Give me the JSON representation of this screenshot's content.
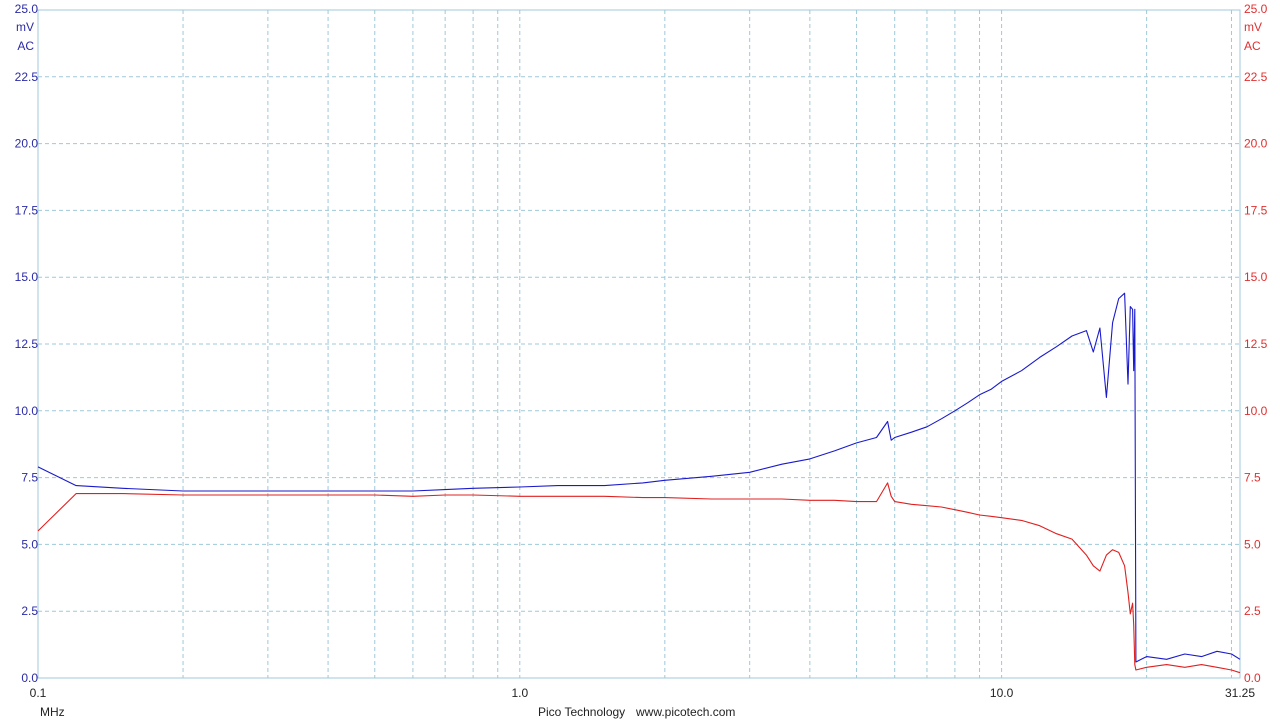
{
  "footer": {
    "brand": "Pico Technology",
    "website": "www.picotech.com"
  },
  "chart_data": {
    "type": "line",
    "x_scale": "log",
    "x_unit_label": "MHz",
    "x_ticks": [
      {
        "value": 0.1,
        "label": "0.1"
      },
      {
        "value": 1.0,
        "label": "1.0"
      },
      {
        "value": 10.0,
        "label": "10.0"
      },
      {
        "value": 31.25,
        "label": "31.25"
      }
    ],
    "xlim": [
      0.1,
      31.25
    ],
    "y_left": {
      "unit": "mV",
      "coupling": "AC",
      "color": "#1a1acc",
      "ylim": [
        0,
        25
      ],
      "ticks": [
        "0.0",
        "2.5",
        "5.0",
        "7.5",
        "10.0",
        "12.5",
        "15.0",
        "17.5",
        "20.0",
        "22.5",
        "25.0"
      ]
    },
    "y_right": {
      "unit": "mV",
      "coupling": "AC",
      "color": "#e02020",
      "ylim": [
        0,
        25
      ],
      "ticks": [
        "0.0",
        "2.5",
        "5.0",
        "7.5",
        "10.0",
        "12.5",
        "15.0",
        "17.5",
        "20.0",
        "22.5",
        "25.0"
      ]
    },
    "grid": true,
    "series": [
      {
        "color": "#1a1acc",
        "axis": "left",
        "x": [
          0.1,
          0.12,
          0.15,
          0.2,
          0.3,
          0.4,
          0.5,
          0.6,
          0.7,
          0.8,
          1.0,
          1.2,
          1.5,
          1.8,
          2.0,
          2.5,
          3.0,
          3.5,
          4.0,
          4.5,
          5.0,
          5.5,
          5.8,
          5.9,
          6.0,
          6.5,
          7.0,
          7.5,
          8.0,
          8.5,
          9.0,
          9.5,
          10.0,
          11.0,
          12.0,
          13.0,
          14.0,
          15.0,
          15.5,
          16.0,
          16.5,
          17.0,
          17.5,
          18.0,
          18.3,
          18.5,
          18.7,
          18.8,
          18.9,
          19.0,
          20.0,
          22.0,
          24.0,
          26.0,
          28.0,
          30.0,
          31.25
        ],
        "y": [
          7.9,
          7.2,
          7.1,
          7.0,
          7.0,
          7.0,
          7.0,
          7.0,
          7.05,
          7.1,
          7.15,
          7.2,
          7.2,
          7.3,
          7.4,
          7.55,
          7.7,
          8.0,
          8.2,
          8.5,
          8.8,
          9.0,
          9.6,
          8.9,
          9.0,
          9.2,
          9.4,
          9.7,
          10.0,
          10.3,
          10.6,
          10.8,
          11.1,
          11.5,
          12.0,
          12.4,
          12.8,
          13.0,
          12.2,
          13.1,
          10.5,
          13.3,
          14.2,
          14.4,
          11.0,
          13.9,
          13.8,
          11.5,
          13.8,
          0.6,
          0.8,
          0.7,
          0.9,
          0.8,
          1.0,
          0.9,
          0.7
        ]
      },
      {
        "color": "#e02020",
        "axis": "right",
        "x": [
          0.1,
          0.12,
          0.15,
          0.2,
          0.3,
          0.4,
          0.5,
          0.6,
          0.7,
          0.8,
          1.0,
          1.2,
          1.5,
          1.8,
          2.0,
          2.5,
          3.0,
          3.5,
          4.0,
          4.5,
          5.0,
          5.5,
          5.8,
          5.9,
          6.0,
          6.5,
          7.0,
          7.5,
          8.0,
          8.5,
          9.0,
          9.5,
          10.0,
          11.0,
          12.0,
          13.0,
          14.0,
          15.0,
          15.5,
          16.0,
          16.5,
          17.0,
          17.5,
          18.0,
          18.3,
          18.5,
          18.7,
          18.8,
          18.9,
          19.0,
          20.0,
          22.0,
          24.0,
          26.0,
          28.0,
          30.0,
          31.25
        ],
        "y": [
          5.5,
          6.9,
          6.9,
          6.85,
          6.85,
          6.85,
          6.85,
          6.8,
          6.85,
          6.85,
          6.8,
          6.8,
          6.8,
          6.75,
          6.75,
          6.7,
          6.7,
          6.7,
          6.65,
          6.65,
          6.6,
          6.6,
          7.3,
          6.8,
          6.6,
          6.5,
          6.45,
          6.4,
          6.3,
          6.2,
          6.1,
          6.05,
          6.0,
          5.9,
          5.7,
          5.4,
          5.2,
          4.6,
          4.2,
          4.0,
          4.6,
          4.8,
          4.7,
          4.2,
          3.2,
          2.4,
          2.8,
          2.0,
          0.5,
          0.3,
          0.4,
          0.5,
          0.4,
          0.5,
          0.4,
          0.3,
          0.2
        ]
      }
    ]
  }
}
